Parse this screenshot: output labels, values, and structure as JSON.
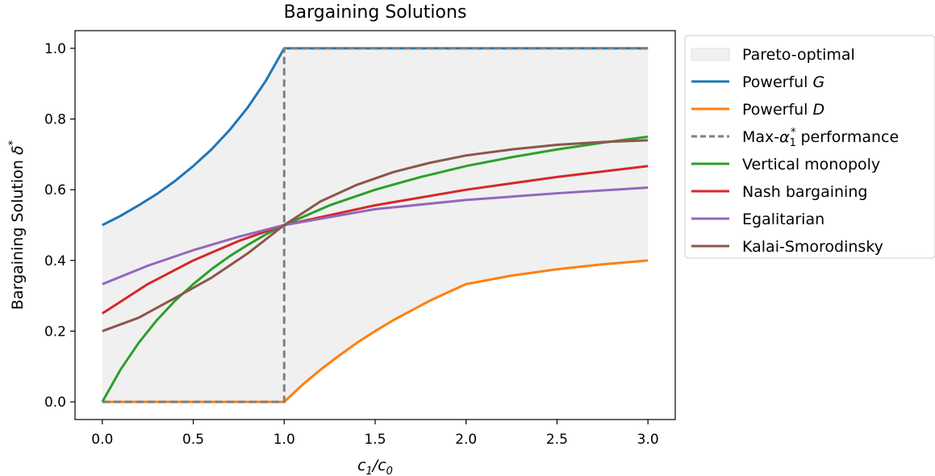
{
  "chart_data": {
    "type": "line",
    "title": "Bargaining Solutions",
    "xlabel": "c_1/c_0",
    "ylabel": "Bargaining Solution δ*",
    "xlim": [
      -0.15,
      3.15
    ],
    "ylim": [
      -0.05,
      1.05
    ],
    "xticks": [
      0.0,
      0.5,
      1.0,
      1.5,
      2.0,
      2.5,
      3.0
    ],
    "xtick_labels": [
      "0.0",
      "0.5",
      "1.0",
      "1.5",
      "2.0",
      "2.5",
      "3.0"
    ],
    "yticks": [
      0.0,
      0.2,
      0.4,
      0.6,
      0.8,
      1.0
    ],
    "ytick_labels": [
      "0.0",
      "0.2",
      "0.4",
      "0.6",
      "0.8",
      "1.0"
    ],
    "grid": false,
    "legend_position": "outside-right-top",
    "pareto_region": {
      "name": "Pareto-optimal",
      "color": "#f0f0f0",
      "upper": "Powerful G",
      "lower": "Powerful D"
    },
    "series": [
      {
        "name": "Powerful G",
        "name_main": "Powerful ",
        "name_italic": "G",
        "color": "#1f77b4",
        "dash": "",
        "x": [
          0,
          0.1,
          0.2,
          0.3,
          0.4,
          0.5,
          0.6,
          0.7,
          0.8,
          0.9,
          1.0,
          1.5,
          2.0,
          2.5,
          3.0
        ],
        "y": [
          0.5,
          0.526,
          0.556,
          0.588,
          0.625,
          0.667,
          0.714,
          0.769,
          0.833,
          0.909,
          1.0,
          1.0,
          1.0,
          1.0,
          1.0
        ]
      },
      {
        "name": "Powerful D",
        "name_main": "Powerful ",
        "name_italic": "D",
        "color": "#ff7f0e",
        "dash": "",
        "x": [
          0,
          0.5,
          1.0,
          1.1,
          1.2,
          1.3,
          1.4,
          1.5,
          1.6,
          1.8,
          2.0,
          2.25,
          2.5,
          2.75,
          3.0
        ],
        "y": [
          0,
          0,
          0,
          0.048,
          0.091,
          0.13,
          0.167,
          0.2,
          0.231,
          0.286,
          0.333,
          0.357,
          0.375,
          0.389,
          0.4
        ]
      },
      {
        "name": "Max-α₁* performance",
        "name_pre": "Max-",
        "name_sym": "α",
        "name_sub": "1",
        "name_sup": "*",
        "name_post": " performance",
        "color": "#7f7f7f",
        "dash": "9,5",
        "x": [
          0,
          1.0,
          1.0,
          3.0
        ],
        "y": [
          0,
          0,
          1,
          1
        ]
      },
      {
        "name": "Vertical monopoly",
        "color": "#2ca02c",
        "dash": "",
        "x": [
          0,
          0.1,
          0.2,
          0.3,
          0.4,
          0.5,
          0.6,
          0.7,
          0.8,
          0.9,
          1.0,
          1.25,
          1.5,
          1.75,
          2.0,
          2.25,
          2.5,
          2.75,
          3.0
        ],
        "y": [
          0,
          0.091,
          0.167,
          0.231,
          0.286,
          0.333,
          0.375,
          0.412,
          0.444,
          0.474,
          0.5,
          0.556,
          0.6,
          0.636,
          0.667,
          0.692,
          0.714,
          0.733,
          0.75
        ]
      },
      {
        "name": "Nash bargaining",
        "color": "#d62728",
        "dash": "",
        "x": [
          0,
          0.25,
          0.5,
          0.75,
          1.0,
          1.5,
          2.0,
          2.5,
          3.0
        ],
        "y": [
          0.25,
          0.333,
          0.4,
          0.455,
          0.5,
          0.556,
          0.6,
          0.636,
          0.667
        ]
      },
      {
        "name": "Egalitarian",
        "color": "#9467bd",
        "dash": "",
        "x": [
          0,
          0.25,
          0.5,
          0.75,
          1.0,
          1.5,
          2.0,
          2.5,
          3.0
        ],
        "y": [
          0.333,
          0.385,
          0.429,
          0.467,
          0.5,
          0.545,
          0.571,
          0.59,
          0.606
        ]
      },
      {
        "name": "Kalai-Smorodinsky",
        "color": "#8c564b",
        "dash": "",
        "x": [
          0,
          0.2,
          0.4,
          0.6,
          0.8,
          1.0,
          1.2,
          1.4,
          1.6,
          1.8,
          2.0,
          2.25,
          2.5,
          2.75,
          3.0
        ],
        "y": [
          0.2,
          0.238,
          0.294,
          0.351,
          0.42,
          0.5,
          0.567,
          0.614,
          0.65,
          0.676,
          0.697,
          0.714,
          0.727,
          0.735,
          0.74
        ]
      }
    ]
  }
}
